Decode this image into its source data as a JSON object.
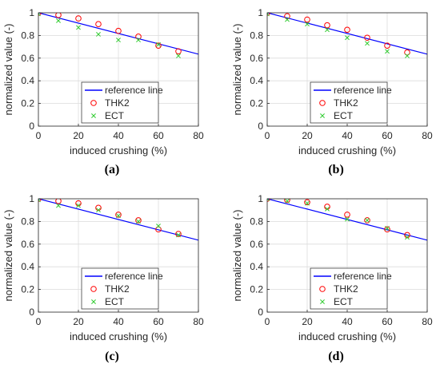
{
  "chart_data": [
    {
      "panel": "(a)",
      "type": "scatter",
      "xlabel": "induced crushing (%)",
      "ylabel": "normalized value (-)",
      "xlim": [
        0,
        80
      ],
      "ylim": [
        0,
        1
      ],
      "xticks": [
        0,
        20,
        40,
        60,
        80
      ],
      "yticks": [
        0,
        0.2,
        0.4,
        0.6,
        0.8,
        1
      ],
      "grid": true,
      "legend_placement": "bottom-center",
      "series": [
        {
          "name": "reference line",
          "kind": "line",
          "color": "#0000ff",
          "x": [
            0,
            80
          ],
          "y": [
            1,
            0.635
          ]
        },
        {
          "name": "THK2",
          "kind": "circle",
          "color": "#ff0000",
          "x": [
            0,
            10,
            20,
            30,
            40,
            50,
            60,
            70
          ],
          "y": [
            1.0,
            0.98,
            0.95,
            0.9,
            0.84,
            0.79,
            0.71,
            0.66
          ]
        },
        {
          "name": "ECT",
          "kind": "cross",
          "color": "#33cc33",
          "x": [
            0,
            10,
            20,
            30,
            40,
            50,
            60,
            70
          ],
          "y": [
            0.99,
            0.93,
            0.87,
            0.81,
            0.76,
            0.76,
            0.72,
            0.62
          ]
        }
      ]
    },
    {
      "panel": "(b)",
      "type": "scatter",
      "xlabel": "induced crushing (%)",
      "ylabel": "normalized value (-)",
      "xlim": [
        0,
        80
      ],
      "ylim": [
        0,
        1
      ],
      "xticks": [
        0,
        20,
        40,
        60,
        80
      ],
      "yticks": [
        0,
        0.2,
        0.4,
        0.6,
        0.8,
        1
      ],
      "grid": true,
      "legend_placement": "bottom-center",
      "series": [
        {
          "name": "reference line",
          "kind": "line",
          "color": "#0000ff",
          "x": [
            0,
            80
          ],
          "y": [
            1,
            0.635
          ]
        },
        {
          "name": "THK2",
          "kind": "circle",
          "color": "#ff0000",
          "x": [
            0,
            10,
            20,
            30,
            40,
            50,
            60,
            70
          ],
          "y": [
            1.0,
            0.97,
            0.94,
            0.89,
            0.85,
            0.78,
            0.71,
            0.65
          ]
        },
        {
          "name": "ECT",
          "kind": "cross",
          "color": "#33cc33",
          "x": [
            0,
            10,
            20,
            30,
            40,
            50,
            60,
            70
          ],
          "y": [
            0.99,
            0.94,
            0.9,
            0.85,
            0.78,
            0.73,
            0.66,
            0.62
          ]
        }
      ]
    },
    {
      "panel": "(c)",
      "type": "scatter",
      "xlabel": "induced crushing (%)",
      "ylabel": "normalized value (-)",
      "xlim": [
        0,
        80
      ],
      "ylim": [
        0,
        1
      ],
      "xticks": [
        0,
        20,
        40,
        60,
        80
      ],
      "yticks": [
        0,
        0.2,
        0.4,
        0.6,
        0.8,
        1
      ],
      "grid": true,
      "legend_placement": "bottom-center",
      "series": [
        {
          "name": "reference line",
          "kind": "line",
          "color": "#0000ff",
          "x": [
            0,
            80
          ],
          "y": [
            1,
            0.635
          ]
        },
        {
          "name": "THK2",
          "kind": "circle",
          "color": "#ff0000",
          "x": [
            0,
            10,
            20,
            30,
            40,
            50,
            60,
            70
          ],
          "y": [
            1.0,
            0.98,
            0.96,
            0.92,
            0.86,
            0.81,
            0.73,
            0.69
          ]
        },
        {
          "name": "ECT",
          "kind": "cross",
          "color": "#33cc33",
          "x": [
            0,
            10,
            20,
            30,
            40,
            50,
            60,
            70
          ],
          "y": [
            0.99,
            0.94,
            0.94,
            0.9,
            0.85,
            0.8,
            0.76,
            0.68
          ]
        }
      ]
    },
    {
      "panel": "(d)",
      "type": "scatter",
      "xlabel": "induced crushing (%)",
      "ylabel": "normalized value (-)",
      "xlim": [
        0,
        80
      ],
      "ylim": [
        0,
        1
      ],
      "xticks": [
        0,
        20,
        40,
        60,
        80
      ],
      "yticks": [
        0,
        0.2,
        0.4,
        0.6,
        0.8,
        1
      ],
      "grid": true,
      "legend_placement": "bottom-center",
      "series": [
        {
          "name": "reference line",
          "kind": "line",
          "color": "#0000ff",
          "x": [
            0,
            80
          ],
          "y": [
            1,
            0.635
          ]
        },
        {
          "name": "THK2",
          "kind": "circle",
          "color": "#ff0000",
          "x": [
            0,
            10,
            20,
            30,
            40,
            50,
            60,
            70
          ],
          "y": [
            1.0,
            0.99,
            0.97,
            0.93,
            0.86,
            0.81,
            0.73,
            0.68
          ]
        },
        {
          "name": "ECT",
          "kind": "cross",
          "color": "#33cc33",
          "x": [
            0,
            10,
            20,
            30,
            40,
            50,
            60,
            70
          ],
          "y": [
            1.0,
            0.98,
            0.96,
            0.91,
            0.82,
            0.81,
            0.74,
            0.66
          ]
        }
      ]
    }
  ]
}
